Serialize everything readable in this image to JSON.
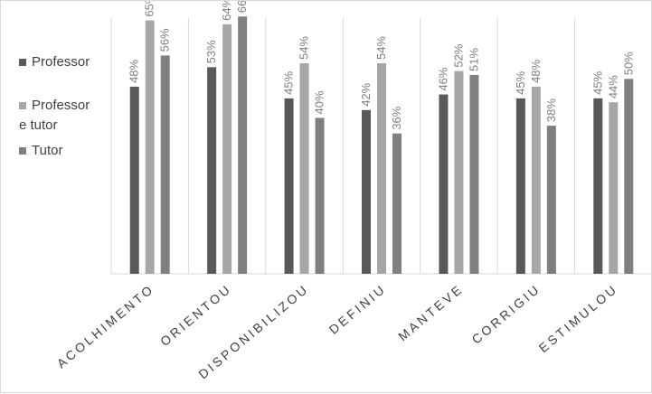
{
  "chart_data": {
    "type": "bar",
    "categories": [
      "ACOLHIMENTO",
      "ORIENTOU",
      "DISPONIBILIZOU",
      "DEFINIU",
      "MANTEVE",
      "CORRIGIU",
      "ESTIMULOU"
    ],
    "series": [
      {
        "name": "Professor",
        "color": "#595959",
        "values": [
          48,
          53,
          45,
          42,
          46,
          45,
          45
        ]
      },
      {
        "name": "Professor e tutor",
        "color": "#a6a6a6",
        "values": [
          65,
          64,
          54,
          54,
          52,
          48,
          44
        ]
      },
      {
        "name": "Tutor",
        "color": "#7f7f7f",
        "values": [
          56,
          66,
          40,
          36,
          51,
          38,
          50
        ]
      }
    ],
    "value_suffix": "%",
    "ylim": [
      0,
      70
    ],
    "grid": "vertical category separators",
    "legend_position": "left"
  },
  "legend": {
    "items": [
      {
        "lines": [
          "Professor"
        ],
        "color": "#595959"
      },
      {
        "lines": [
          "Professor",
          "e tutor"
        ],
        "color": "#a6a6a6"
      },
      {
        "lines": [
          "Tutor"
        ],
        "color": "#7f7f7f"
      }
    ]
  }
}
